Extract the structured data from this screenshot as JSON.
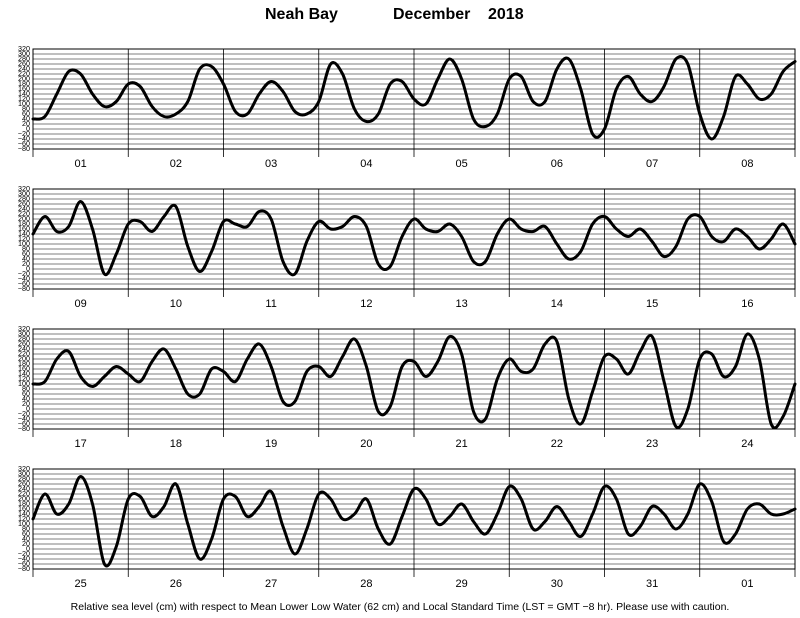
{
  "title": {
    "location": "Neah Bay",
    "month": "December",
    "year": "2018"
  },
  "footnote": "Relative sea level (cm) with respect to Mean Lower Low Water (62 cm) and Local Standard Time (LST = GMT −8 hr). Please use with caution.",
  "chart_data": {
    "type": "line",
    "ylabel": "",
    "yticks": [
      320,
      300,
      280,
      260,
      240,
      220,
      200,
      180,
      160,
      140,
      120,
      100,
      80,
      60,
      40,
      20,
      0,
      -20,
      -40,
      -60,
      -80
    ],
    "ylim": [
      -80,
      320
    ],
    "grid": true,
    "panels": [
      {
        "days": [
          "01",
          "02",
          "03",
          "04",
          "05",
          "06",
          "07",
          "08"
        ],
        "series": [
          {
            "x": [
              0,
              0.125,
              0.25,
              0.375,
              0.5,
              0.625,
              0.75,
              0.875,
              1,
              1.125,
              1.25,
              1.375,
              1.5,
              1.625,
              1.75,
              1.875,
              2,
              2.125,
              2.25,
              2.375,
              2.5,
              2.625,
              2.75,
              2.875,
              3,
              3.125,
              3.25,
              3.375,
              3.5,
              3.625,
              3.75,
              3.875,
              4,
              4.125,
              4.25,
              4.375,
              4.5,
              4.625,
              4.75,
              4.875,
              5,
              5.125,
              5.25,
              5.375,
              5.5,
              5.625,
              5.75,
              5.875,
              6,
              6.125,
              6.25,
              6.375,
              6.5,
              6.625,
              6.75,
              6.875,
              7,
              7.125,
              7.25,
              7.375,
              7.5,
              7.625,
              7.75,
              7.875,
              8
            ],
            "y": [
              40,
              50,
              140,
              230,
              220,
              140,
              90,
              110,
              180,
              170,
              90,
              50,
              60,
              110,
              240,
              250,
              180,
              70,
              60,
              140,
              190,
              150,
              70,
              60,
              110,
              260,
              220,
              80,
              30,
              60,
              180,
              190,
              120,
              100,
              200,
              280,
              200,
              40,
              10,
              60,
              200,
              210,
              110,
              110,
              240,
              280,
              160,
              -20,
              0,
              160,
              210,
              140,
              110,
              170,
              280,
              260,
              60,
              -40,
              50,
              210,
              180,
              120,
              140,
              230,
              270
            ]
          }
        ]
      },
      {
        "days": [
          "09",
          "10",
          "11",
          "12",
          "13",
          "14",
          "15",
          "16"
        ],
        "series": [
          {
            "x": [
              0,
              0.125,
              0.25,
              0.375,
              0.5,
              0.625,
              0.75,
              0.875,
              1,
              1.125,
              1.25,
              1.375,
              1.5,
              1.625,
              1.75,
              1.875,
              2,
              2.125,
              2.25,
              2.375,
              2.5,
              2.625,
              2.75,
              2.875,
              3,
              3.125,
              3.25,
              3.375,
              3.5,
              3.625,
              3.75,
              3.875,
              4,
              4.125,
              4.25,
              4.375,
              4.5,
              4.625,
              4.75,
              4.875,
              5,
              5.125,
              5.25,
              5.375,
              5.5,
              5.625,
              5.75,
              5.875,
              6,
              6.125,
              6.25,
              6.375,
              6.5,
              6.625,
              6.75,
              6.875,
              7,
              7.125,
              7.25,
              7.375,
              7.5,
              7.625,
              7.75,
              7.875,
              8
            ],
            "y": [
              140,
              210,
              150,
              170,
              270,
              160,
              -20,
              60,
              180,
              190,
              150,
              210,
              250,
              90,
              -10,
              70,
              190,
              180,
              170,
              230,
              200,
              30,
              -20,
              110,
              190,
              160,
              170,
              210,
              170,
              20,
              10,
              130,
              200,
              160,
              150,
              180,
              130,
              30,
              30,
              140,
              200,
              160,
              150,
              170,
              100,
              40,
              70,
              180,
              210,
              160,
              130,
              160,
              110,
              50,
              90,
              200,
              210,
              130,
              110,
              160,
              130,
              80,
              120,
              180,
              100
            ]
          }
        ]
      },
      {
        "days": [
          "17",
          "18",
          "19",
          "20",
          "21",
          "22",
          "23",
          "24"
        ],
        "series": [
          {
            "x": [
              0,
              0.125,
              0.25,
              0.375,
              0.5,
              0.625,
              0.75,
              0.875,
              1,
              1.125,
              1.25,
              1.375,
              1.5,
              1.625,
              1.75,
              1.875,
              2,
              2.125,
              2.25,
              2.375,
              2.5,
              2.625,
              2.75,
              2.875,
              3,
              3.125,
              3.25,
              3.375,
              3.5,
              3.625,
              3.75,
              3.875,
              4,
              4.125,
              4.25,
              4.375,
              4.5,
              4.625,
              4.75,
              4.875,
              5,
              5.125,
              5.25,
              5.375,
              5.5,
              5.625,
              5.75,
              5.875,
              6,
              6.125,
              6.25,
              6.375,
              6.5,
              6.625,
              6.75,
              6.875,
              7,
              7.125,
              7.25,
              7.375,
              7.5,
              7.625,
              7.75,
              7.875,
              8
            ],
            "y": [
              100,
              110,
              200,
              230,
              130,
              90,
              130,
              170,
              140,
              110,
              190,
              240,
              160,
              60,
              60,
              160,
              150,
              110,
              200,
              260,
              170,
              30,
              30,
              150,
              170,
              130,
              210,
              280,
              170,
              -10,
              10,
              170,
              190,
              130,
              190,
              290,
              220,
              -10,
              -40,
              120,
              200,
              150,
              160,
              260,
              270,
              40,
              -60,
              70,
              210,
              200,
              140,
              230,
              290,
              110,
              -70,
              0,
              200,
              220,
              130,
              170,
              300,
              200,
              -60,
              -30,
              100
            ]
          }
        ]
      },
      {
        "days": [
          "25",
          "26",
          "27",
          "28",
          "29",
          "30",
          "31",
          "01"
        ],
        "series": [
          {
            "x": [
              0,
              0.125,
              0.25,
              0.375,
              0.5,
              0.625,
              0.75,
              0.875,
              1,
              1.125,
              1.25,
              1.375,
              1.5,
              1.625,
              1.75,
              1.875,
              2,
              2.125,
              2.25,
              2.375,
              2.5,
              2.625,
              2.75,
              2.875,
              3,
              3.125,
              3.25,
              3.375,
              3.5,
              3.625,
              3.75,
              3.875,
              4,
              4.125,
              4.25,
              4.375,
              4.5,
              4.625,
              4.75,
              4.875,
              5,
              5.125,
              5.25,
              5.375,
              5.5,
              5.625,
              5.75,
              5.875,
              6,
              6.125,
              6.25,
              6.375,
              6.5,
              6.625,
              6.75,
              6.875,
              7,
              7.125,
              7.25,
              7.375,
              7.5,
              7.625,
              7.75,
              7.875,
              8
            ],
            "y": [
              120,
              220,
              140,
              180,
              290,
              180,
              -60,
              10,
              200,
              210,
              130,
              170,
              260,
              100,
              -40,
              40,
              200,
              210,
              130,
              170,
              230,
              90,
              -20,
              80,
              220,
              200,
              120,
              140,
              200,
              80,
              20,
              130,
              240,
              200,
              100,
              130,
              180,
              110,
              60,
              140,
              250,
              200,
              80,
              110,
              170,
              110,
              50,
              140,
              250,
              200,
              60,
              90,
              170,
              140,
              80,
              140,
              260,
              190,
              30,
              60,
              160,
              180,
              140,
              140,
              160
            ]
          }
        ]
      }
    ]
  }
}
